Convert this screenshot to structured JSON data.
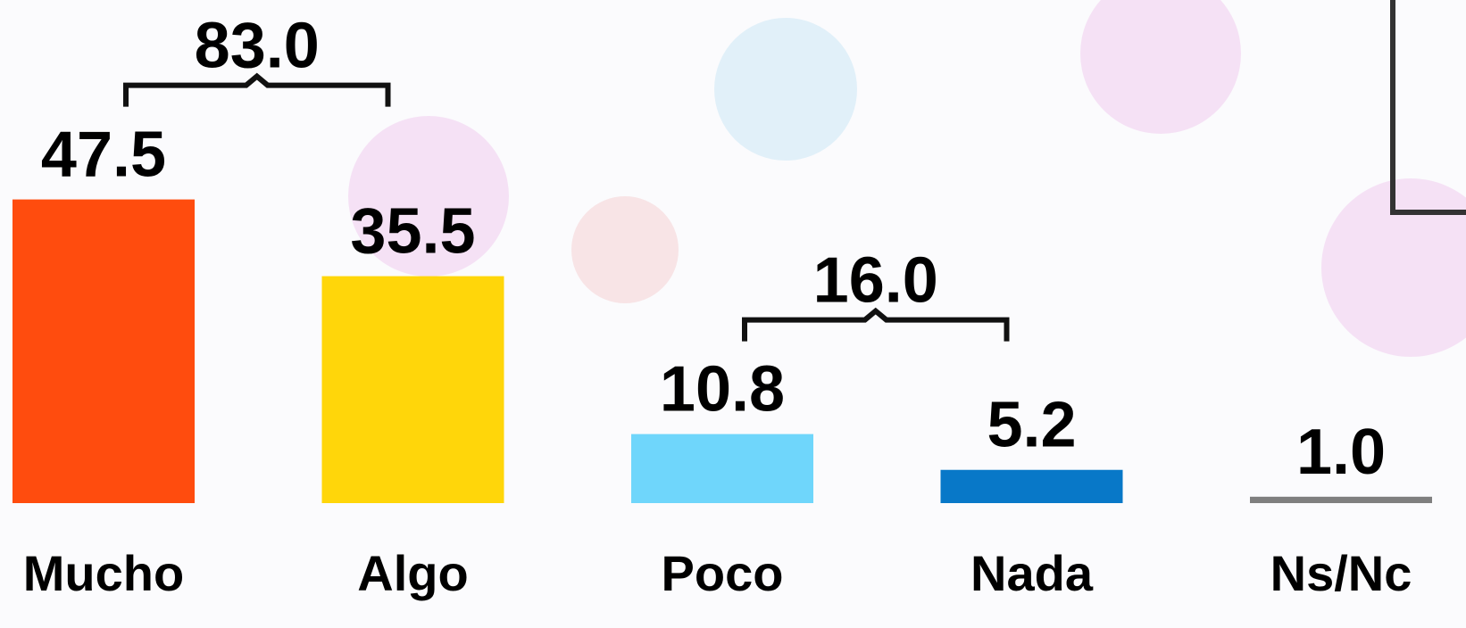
{
  "chart_data": {
    "type": "bar",
    "categories": [
      "Mucho",
      "Algo",
      "Poco",
      "Nada",
      "Ns/Nc"
    ],
    "values": [
      47.5,
      35.5,
      10.8,
      5.2,
      1.0
    ],
    "value_labels": [
      "47.5",
      "35.5",
      "10.8",
      "5.2",
      "1.0"
    ],
    "colors": [
      "#ff4c0e",
      "#ffd60a",
      "#6fd6fb",
      "#0878c8",
      "#7f7f7f"
    ],
    "ylim": [
      0,
      60
    ],
    "brackets": [
      {
        "categories": [
          "Mucho",
          "Algo"
        ],
        "value": 83.0,
        "label": "83.0"
      },
      {
        "categories": [
          "Poco",
          "Nada"
        ],
        "value": 16.0,
        "label": "16.0"
      }
    ]
  }
}
